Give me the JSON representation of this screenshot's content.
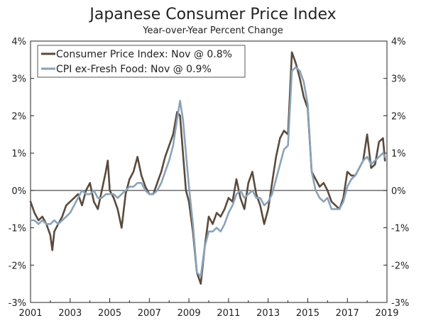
{
  "chart_data": {
    "type": "line",
    "title": "Japanese Consumer Price Index",
    "subtitle": "Year-over-Year Percent Change",
    "xlabel": "",
    "ylabel": "",
    "xlim": [
      2001,
      2019
    ],
    "ylim": [
      -3,
      4
    ],
    "x_ticks": [
      2001,
      2003,
      2005,
      2007,
      2009,
      2011,
      2013,
      2015,
      2017,
      2019
    ],
    "x_tick_labels": [
      "2001",
      "2003",
      "2005",
      "2007",
      "2009",
      "2011",
      "2013",
      "2015",
      "2017",
      "2019"
    ],
    "y_ticks": [
      -3,
      -2,
      -1,
      0,
      1,
      2,
      3,
      4
    ],
    "y_tick_labels": [
      "-3%",
      "-2%",
      "-1%",
      "0%",
      "1%",
      "2%",
      "3%",
      "4%"
    ],
    "legend_position": "top-left",
    "series": [
      {
        "name": "Consumer Price Index: Nov @ 0.8%",
        "color": "#5a4a3c",
        "x": [
          2001.0,
          2001.2,
          2001.4,
          2001.6,
          2001.8,
          2002.0,
          2002.1,
          2002.2,
          2002.4,
          2002.6,
          2002.8,
          2003.0,
          2003.2,
          2003.4,
          2003.6,
          2003.8,
          2004.0,
          2004.2,
          2004.4,
          2004.6,
          2004.8,
          2004.9,
          2005.0,
          2005.2,
          2005.4,
          2005.6,
          2005.8,
          2006.0,
          2006.2,
          2006.4,
          2006.6,
          2006.8,
          2007.0,
          2007.2,
          2007.4,
          2007.6,
          2007.8,
          2008.0,
          2008.2,
          2008.4,
          2008.55,
          2008.7,
          2008.85,
          2009.0,
          2009.2,
          2009.4,
          2009.6,
          2009.8,
          2010.0,
          2010.2,
          2010.4,
          2010.6,
          2010.8,
          2011.0,
          2011.2,
          2011.4,
          2011.6,
          2011.8,
          2012.0,
          2012.2,
          2012.4,
          2012.6,
          2012.8,
          2013.0,
          2013.2,
          2013.4,
          2013.6,
          2013.8,
          2014.0,
          2014.2,
          2014.4,
          2014.6,
          2014.8,
          2015.0,
          2015.2,
          2015.4,
          2015.6,
          2015.8,
          2016.0,
          2016.2,
          2016.4,
          2016.6,
          2016.8,
          2017.0,
          2017.2,
          2017.4,
          2017.6,
          2017.8,
          2018.0,
          2018.2,
          2018.4,
          2018.6,
          2018.8,
          2018.9
        ],
        "values": [
          -0.3,
          -0.6,
          -0.8,
          -0.7,
          -0.9,
          -1.2,
          -1.6,
          -1.1,
          -0.9,
          -0.7,
          -0.4,
          -0.3,
          -0.2,
          -0.1,
          -0.4,
          0.0,
          0.2,
          -0.3,
          -0.5,
          0.0,
          0.5,
          0.8,
          0.0,
          -0.2,
          -0.5,
          -1.0,
          -0.1,
          0.3,
          0.5,
          0.9,
          0.4,
          0.1,
          -0.1,
          -0.1,
          0.2,
          0.5,
          0.9,
          1.2,
          1.5,
          2.1,
          2.0,
          1.0,
          0.0,
          -0.3,
          -1.1,
          -2.2,
          -2.5,
          -1.5,
          -0.7,
          -0.9,
          -0.6,
          -0.7,
          -0.5,
          -0.2,
          -0.3,
          0.3,
          -0.2,
          -0.5,
          0.2,
          0.5,
          -0.1,
          -0.4,
          -0.9,
          -0.5,
          0.2,
          0.9,
          1.4,
          1.6,
          1.5,
          3.7,
          3.4,
          3.0,
          2.5,
          2.2,
          0.5,
          0.3,
          0.1,
          0.2,
          0.0,
          -0.3,
          -0.4,
          -0.5,
          -0.2,
          0.5,
          0.4,
          0.4,
          0.6,
          0.8,
          1.5,
          0.6,
          0.7,
          1.3,
          1.4,
          0.8
        ]
      },
      {
        "name": "CPI ex-Fresh Food: Nov @ 0.9%",
        "color": "#8aa2b8",
        "x": [
          2001.0,
          2001.2,
          2001.4,
          2001.6,
          2001.8,
          2002.0,
          2002.2,
          2002.4,
          2002.6,
          2002.8,
          2003.0,
          2003.2,
          2003.4,
          2003.6,
          2003.8,
          2004.0,
          2004.2,
          2004.4,
          2004.6,
          2004.8,
          2005.0,
          2005.2,
          2005.4,
          2005.6,
          2005.8,
          2006.0,
          2006.2,
          2006.4,
          2006.6,
          2006.8,
          2007.0,
          2007.2,
          2007.4,
          2007.6,
          2007.8,
          2008.0,
          2008.2,
          2008.4,
          2008.55,
          2008.7,
          2008.85,
          2009.0,
          2009.2,
          2009.4,
          2009.6,
          2009.8,
          2010.0,
          2010.2,
          2010.4,
          2010.6,
          2010.8,
          2011.0,
          2011.2,
          2011.4,
          2011.6,
          2011.8,
          2012.0,
          2012.2,
          2012.4,
          2012.6,
          2012.8,
          2013.0,
          2013.2,
          2013.4,
          2013.6,
          2013.8,
          2014.0,
          2014.2,
          2014.4,
          2014.6,
          2014.8,
          2015.0,
          2015.2,
          2015.4,
          2015.6,
          2015.8,
          2016.0,
          2016.2,
          2016.4,
          2016.6,
          2016.8,
          2017.0,
          2017.2,
          2017.4,
          2017.6,
          2017.8,
          2018.0,
          2018.2,
          2018.4,
          2018.6,
          2018.8,
          2018.9
        ],
        "values": [
          -0.8,
          -0.8,
          -0.9,
          -0.8,
          -0.9,
          -0.9,
          -0.8,
          -0.9,
          -0.8,
          -0.7,
          -0.6,
          -0.4,
          -0.2,
          0.0,
          -0.1,
          -0.1,
          0.0,
          -0.2,
          -0.2,
          -0.1,
          -0.1,
          -0.1,
          -0.2,
          -0.1,
          0.0,
          0.1,
          0.1,
          0.2,
          0.2,
          0.0,
          -0.1,
          -0.1,
          0.0,
          0.2,
          0.5,
          0.8,
          1.2,
          1.9,
          2.4,
          1.9,
          1.0,
          0.1,
          -0.9,
          -2.2,
          -2.3,
          -1.5,
          -1.1,
          -1.1,
          -1.0,
          -1.1,
          -0.9,
          -0.6,
          -0.4,
          -0.1,
          0.0,
          -0.2,
          -0.1,
          0.0,
          -0.2,
          -0.2,
          -0.4,
          -0.3,
          -0.1,
          0.3,
          0.7,
          1.1,
          1.2,
          3.2,
          3.3,
          3.2,
          2.9,
          2.3,
          0.5,
          0.0,
          -0.2,
          -0.3,
          -0.2,
          -0.5,
          -0.5,
          -0.5,
          -0.3,
          0.1,
          0.3,
          0.4,
          0.6,
          0.8,
          0.9,
          0.7,
          0.8,
          0.9,
          1.0,
          0.9
        ]
      }
    ]
  }
}
